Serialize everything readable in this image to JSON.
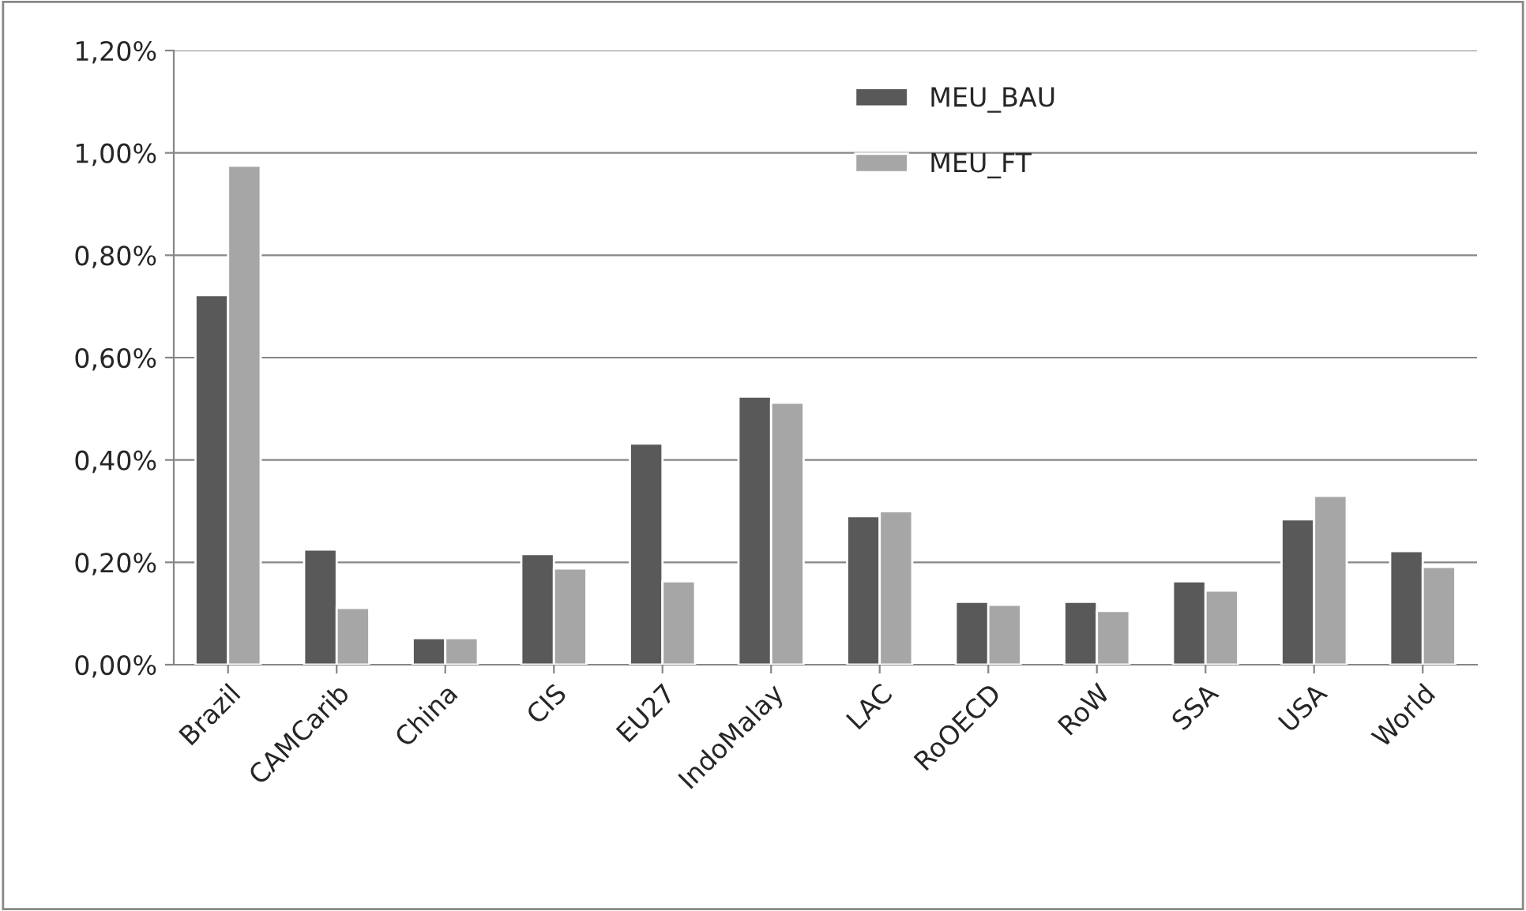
{
  "chart_data": {
    "type": "bar",
    "categories": [
      "Brazil",
      "CAMCarib",
      "China",
      "CIS",
      "EU27",
      "IndoMalay",
      "LAC",
      "RoOECD",
      "RoW",
      "SSA",
      "USA",
      "World"
    ],
    "series": [
      {
        "name": "MEU_BAU",
        "color": "#595959",
        "values": [
          0.722,
          0.225,
          0.052,
          0.216,
          0.432,
          0.524,
          0.29,
          0.123,
          0.123,
          0.163,
          0.284,
          0.222
        ]
      },
      {
        "name": "MEU_FT",
        "color": "#a6a6a6",
        "values": [
          0.975,
          0.111,
          0.052,
          0.188,
          0.163,
          0.512,
          0.3,
          0.117,
          0.105,
          0.145,
          0.33,
          0.191
        ]
      }
    ],
    "ylim": [
      0,
      1.2
    ],
    "yticks": [
      {
        "value": 0,
        "label": "0,00%"
      },
      {
        "value": 0.2,
        "label": "0,20%"
      },
      {
        "value": 0.4,
        "label": "0,40%"
      },
      {
        "value": 0.6,
        "label": "0,60%"
      },
      {
        "value": 0.8,
        "label": "0,80%"
      },
      {
        "value": 1.0,
        "label": "1,00%"
      },
      {
        "value": 1.2,
        "label": "1,20%"
      }
    ],
    "grid": "y",
    "legend": "top center"
  }
}
